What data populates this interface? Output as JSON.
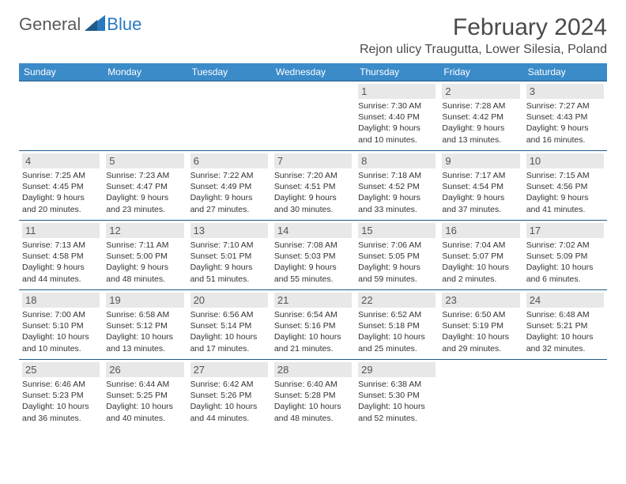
{
  "brand": {
    "text1": "General",
    "text2": "Blue"
  },
  "title": "February 2024",
  "location": "Rejon ulicy Traugutta, Lower Silesia, Poland",
  "day_names": [
    "Sunday",
    "Monday",
    "Tuesday",
    "Wednesday",
    "Thursday",
    "Friday",
    "Saturday"
  ],
  "colors": {
    "header_bg": "#3b8bc9",
    "border": "#1e5a8a",
    "date_bg": "#e8e8e8",
    "brand_blue": "#2a7abf",
    "brand_gray": "#5a5a5a"
  },
  "weeks": [
    [
      {
        "empty": true
      },
      {
        "empty": true
      },
      {
        "empty": true
      },
      {
        "empty": true
      },
      {
        "d": "1",
        "sr": "7:30 AM",
        "ss": "4:40 PM",
        "dl": "9 hours and 10 minutes."
      },
      {
        "d": "2",
        "sr": "7:28 AM",
        "ss": "4:42 PM",
        "dl": "9 hours and 13 minutes."
      },
      {
        "d": "3",
        "sr": "7:27 AM",
        "ss": "4:43 PM",
        "dl": "9 hours and 16 minutes."
      }
    ],
    [
      {
        "d": "4",
        "sr": "7:25 AM",
        "ss": "4:45 PM",
        "dl": "9 hours and 20 minutes."
      },
      {
        "d": "5",
        "sr": "7:23 AM",
        "ss": "4:47 PM",
        "dl": "9 hours and 23 minutes."
      },
      {
        "d": "6",
        "sr": "7:22 AM",
        "ss": "4:49 PM",
        "dl": "9 hours and 27 minutes."
      },
      {
        "d": "7",
        "sr": "7:20 AM",
        "ss": "4:51 PM",
        "dl": "9 hours and 30 minutes."
      },
      {
        "d": "8",
        "sr": "7:18 AM",
        "ss": "4:52 PM",
        "dl": "9 hours and 33 minutes."
      },
      {
        "d": "9",
        "sr": "7:17 AM",
        "ss": "4:54 PM",
        "dl": "9 hours and 37 minutes."
      },
      {
        "d": "10",
        "sr": "7:15 AM",
        "ss": "4:56 PM",
        "dl": "9 hours and 41 minutes."
      }
    ],
    [
      {
        "d": "11",
        "sr": "7:13 AM",
        "ss": "4:58 PM",
        "dl": "9 hours and 44 minutes."
      },
      {
        "d": "12",
        "sr": "7:11 AM",
        "ss": "5:00 PM",
        "dl": "9 hours and 48 minutes."
      },
      {
        "d": "13",
        "sr": "7:10 AM",
        "ss": "5:01 PM",
        "dl": "9 hours and 51 minutes."
      },
      {
        "d": "14",
        "sr": "7:08 AM",
        "ss": "5:03 PM",
        "dl": "9 hours and 55 minutes."
      },
      {
        "d": "15",
        "sr": "7:06 AM",
        "ss": "5:05 PM",
        "dl": "9 hours and 59 minutes."
      },
      {
        "d": "16",
        "sr": "7:04 AM",
        "ss": "5:07 PM",
        "dl": "10 hours and 2 minutes."
      },
      {
        "d": "17",
        "sr": "7:02 AM",
        "ss": "5:09 PM",
        "dl": "10 hours and 6 minutes."
      }
    ],
    [
      {
        "d": "18",
        "sr": "7:00 AM",
        "ss": "5:10 PM",
        "dl": "10 hours and 10 minutes."
      },
      {
        "d": "19",
        "sr": "6:58 AM",
        "ss": "5:12 PM",
        "dl": "10 hours and 13 minutes."
      },
      {
        "d": "20",
        "sr": "6:56 AM",
        "ss": "5:14 PM",
        "dl": "10 hours and 17 minutes."
      },
      {
        "d": "21",
        "sr": "6:54 AM",
        "ss": "5:16 PM",
        "dl": "10 hours and 21 minutes."
      },
      {
        "d": "22",
        "sr": "6:52 AM",
        "ss": "5:18 PM",
        "dl": "10 hours and 25 minutes."
      },
      {
        "d": "23",
        "sr": "6:50 AM",
        "ss": "5:19 PM",
        "dl": "10 hours and 29 minutes."
      },
      {
        "d": "24",
        "sr": "6:48 AM",
        "ss": "5:21 PM",
        "dl": "10 hours and 32 minutes."
      }
    ],
    [
      {
        "d": "25",
        "sr": "6:46 AM",
        "ss": "5:23 PM",
        "dl": "10 hours and 36 minutes."
      },
      {
        "d": "26",
        "sr": "6:44 AM",
        "ss": "5:25 PM",
        "dl": "10 hours and 40 minutes."
      },
      {
        "d": "27",
        "sr": "6:42 AM",
        "ss": "5:26 PM",
        "dl": "10 hours and 44 minutes."
      },
      {
        "d": "28",
        "sr": "6:40 AM",
        "ss": "5:28 PM",
        "dl": "10 hours and 48 minutes."
      },
      {
        "d": "29",
        "sr": "6:38 AM",
        "ss": "5:30 PM",
        "dl": "10 hours and 52 minutes."
      },
      {
        "empty": true
      },
      {
        "empty": true
      }
    ]
  ],
  "labels": {
    "sunrise": "Sunrise:",
    "sunset": "Sunset:",
    "daylight": "Daylight:"
  }
}
